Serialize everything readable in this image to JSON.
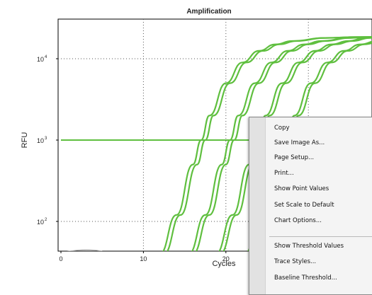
{
  "chart_data": {
    "type": "line",
    "title": "Amplification",
    "xlabel": "Cycles",
    "ylabel": "RFU",
    "x_scale": "linear",
    "y_scale": "log",
    "xlim": [
      0,
      41
    ],
    "ylim": [
      40,
      25000
    ],
    "x_ticks": [
      0,
      10,
      20
    ],
    "x_tick_labels": [
      "0",
      "10",
      "20"
    ],
    "y_ticks": [
      100,
      1000,
      10000
    ],
    "y_tick_labels": [
      {
        "base": "10",
        "exp": "2"
      },
      {
        "base": "10",
        "exp": "3"
      },
      {
        "base": "10",
        "exp": "4"
      }
    ],
    "grid": true,
    "threshold": 1000,
    "series_color": "#5fbf3f",
    "baseline_color": "#a8a8a8",
    "series": [
      {
        "x": [
          12,
          14,
          16,
          17,
          18,
          20,
          22,
          24,
          26,
          28,
          32,
          36,
          40
        ],
        "values": [
          40,
          120,
          500,
          1000,
          2000,
          5000,
          9000,
          12500,
          15000,
          16500,
          18000,
          18500,
          18700
        ]
      },
      {
        "x": [
          12.5,
          14.5,
          16.5,
          17.5,
          18.5,
          20.5,
          22.5,
          24.5,
          26.5,
          28.5,
          32,
          36,
          40
        ],
        "values": [
          40,
          120,
          500,
          1000,
          2000,
          5000,
          9000,
          12500,
          15000,
          16500,
          18000,
          18500,
          18700
        ]
      },
      {
        "x": [
          15.5,
          17.5,
          19.5,
          20.5,
          21.5,
          23.5,
          25.5,
          27.5,
          29.5,
          31.5,
          35,
          38,
          41
        ],
        "values": [
          40,
          120,
          500,
          1000,
          2000,
          5000,
          9000,
          12500,
          15000,
          16500,
          18000,
          18500,
          18700
        ]
      },
      {
        "x": [
          16,
          18,
          20,
          21,
          22,
          24,
          26,
          28,
          30,
          32,
          35,
          38,
          41
        ],
        "values": [
          40,
          120,
          500,
          1000,
          2000,
          5000,
          9000,
          12500,
          15000,
          16500,
          18000,
          18500,
          18700
        ]
      },
      {
        "x": [
          18.8,
          20.8,
          22.8,
          23.8,
          24.8,
          26.8,
          28.8,
          30.8,
          32.8,
          34.8,
          37,
          39,
          41
        ],
        "values": [
          40,
          120,
          500,
          1000,
          2000,
          5000,
          9000,
          12500,
          15000,
          16500,
          18000,
          18500,
          18700
        ]
      },
      {
        "x": [
          19.3,
          21.3,
          23.3,
          24.3,
          25.3,
          27.3,
          29.3,
          31.3,
          33.3,
          35.3,
          37.5,
          39.5,
          41
        ],
        "values": [
          40,
          120,
          500,
          1000,
          2000,
          5000,
          9000,
          12500,
          15000,
          16500,
          18000,
          18500,
          18700
        ]
      },
      {
        "x": [
          22.3,
          24.3,
          26.3,
          27.3,
          28.3,
          30.3,
          32.3,
          34.3,
          36.3,
          38.3,
          41
        ],
        "values": [
          40,
          120,
          500,
          1000,
          2000,
          5000,
          9000,
          12500,
          15000,
          16500,
          17800
        ]
      },
      {
        "x": [
          22.8,
          24.8,
          26.8,
          27.8,
          28.8,
          30.8,
          32.8,
          34.8,
          36.8,
          38.8,
          41
        ],
        "values": [
          40,
          120,
          500,
          1000,
          2000,
          5000,
          9000,
          12500,
          15000,
          16500,
          17500
        ]
      }
    ]
  },
  "context_menu": {
    "items": [
      "Copy",
      "Save Image As...",
      "Page Setup...",
      "Print...",
      "Show Point Values",
      "Set Scale to Default",
      "Chart Options...",
      "Show Threshold Values",
      "Trace Styles...",
      "Baseline Threshold..."
    ]
  }
}
